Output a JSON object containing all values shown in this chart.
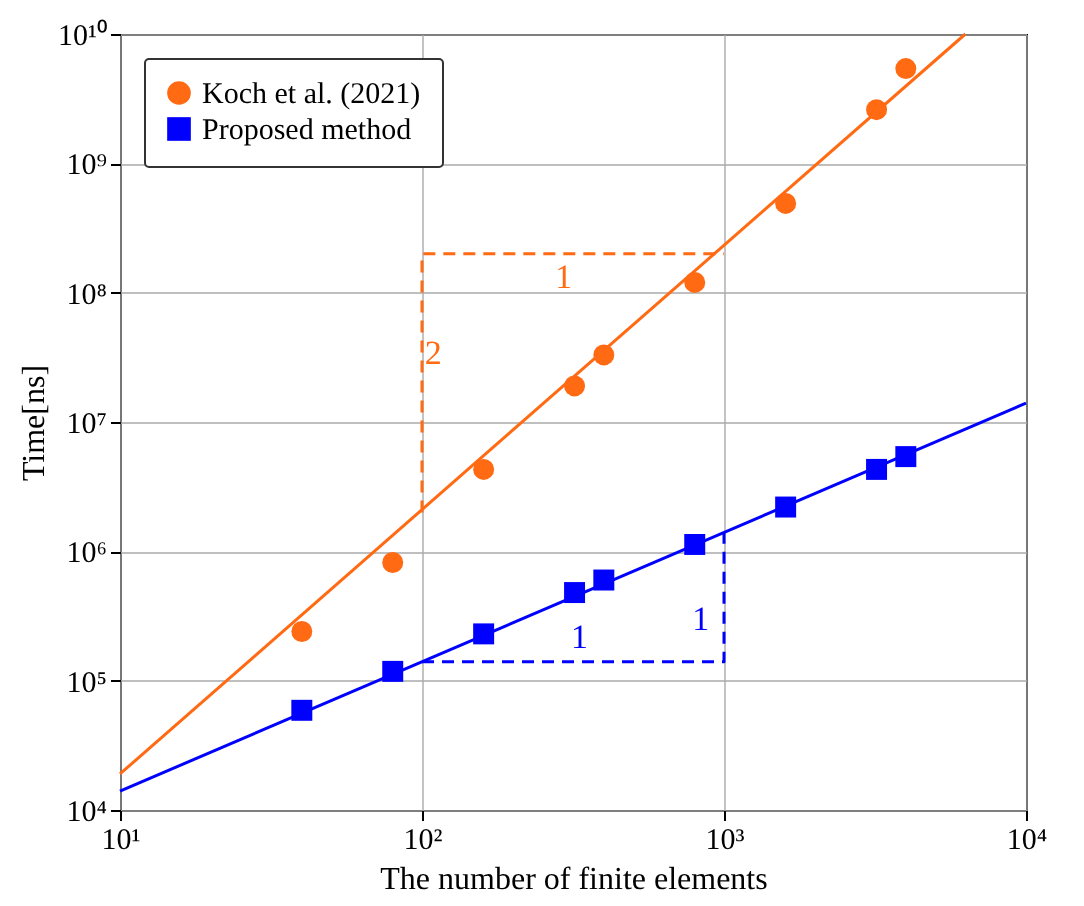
{
  "chart_data": {
    "type": "scatter",
    "xlabel": "The number of finite elements",
    "ylabel": "Time[ns]",
    "log": "xy",
    "grid": true,
    "legend": "top left",
    "xlim": [
      10,
      10000
    ],
    "xticks": [
      {
        "value": 10,
        "label": "10¹"
      },
      {
        "value": 100,
        "label": "10²"
      },
      {
        "value": 1000,
        "label": "10³"
      },
      {
        "value": 10000,
        "label": "10⁴"
      }
    ],
    "ylim": [
      10000,
      10000000000
    ],
    "yticks": [
      {
        "value": 10000,
        "label": "10⁴"
      },
      {
        "value": 100000,
        "label": "10⁵"
      },
      {
        "value": 1000000,
        "label": "10⁶"
      },
      {
        "value": 10000000,
        "label": "10⁷"
      },
      {
        "value": 100000000,
        "label": "10⁸"
      },
      {
        "value": 1000000000,
        "label": "10⁹"
      },
      {
        "value": 10000000000,
        "label": "10¹⁰"
      }
    ],
    "series": [
      {
        "type": "line",
        "marker": "none",
        "line_style": "solid",
        "color": "#ff6a13",
        "x": [
          10,
          6300
        ],
        "values": [
          19000,
          10000000000
        ]
      },
      {
        "type": "line",
        "marker": "none",
        "line_style": "solid",
        "color": "#0000ff",
        "x": [
          10,
          10000
        ],
        "values": [
          14000,
          14000000
        ]
      },
      {
        "type": "line",
        "marker": "none",
        "line_style": "dashed",
        "color": "#ff6a13",
        "x": [
          100,
          100,
          1000
        ],
        "values": [
          2000000,
          200000000,
          200000000
        ]
      },
      {
        "type": "line",
        "marker": "none",
        "line_style": "dashed",
        "color": "#0000ff",
        "x": [
          100,
          1000,
          1000
        ],
        "values": [
          140000,
          140000,
          1400000
        ]
      },
      {
        "name": "Koch et al. (2021)",
        "marker": "circle",
        "color": "#ff6a13",
        "x": [
          40,
          80,
          160,
          320,
          400,
          800,
          1600,
          3200,
          4000
        ],
        "values": [
          240000,
          820000,
          4300000,
          19000000,
          33000000,
          120000000,
          490000000,
          2600000000,
          5400000000
        ]
      },
      {
        "name": "Proposed method",
        "marker": "square",
        "color": "#0000ff",
        "x": [
          40,
          80,
          160,
          320,
          400,
          800,
          1600,
          3200,
          4000
        ],
        "values": [
          59000,
          118000,
          230000,
          480000,
          600000,
          1130000,
          2200000,
          4300000,
          5400000
        ]
      }
    ],
    "annotations": [
      {
        "text": "1",
        "x": 300,
        "y": 200000000
      },
      {
        "text": "2",
        "x": 100,
        "y": 23000000
      },
      {
        "text": "1",
        "x": 320,
        "y": 140000
      },
      {
        "text": "1",
        "x": 1000,
        "y": 330000
      }
    ]
  }
}
